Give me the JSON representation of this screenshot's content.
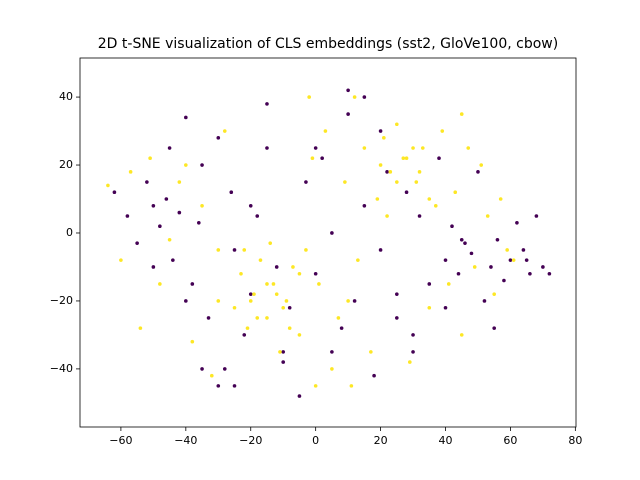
{
  "chart_data": {
    "type": "scatter",
    "title": "2D t-SNE visualization of CLS embeddings (sst2, GloVe100, cbow)",
    "xlim": [
      -72.6,
      80.2
    ],
    "ylim": [
      -57.1,
      51.5
    ],
    "xticks": [
      {
        "value": -60,
        "label": "−60"
      },
      {
        "value": -40,
        "label": "−40"
      },
      {
        "value": -20,
        "label": "−20"
      },
      0,
      20,
      40,
      60,
      80
    ],
    "yticks": [
      {
        "value": -40,
        "label": "−40"
      },
      {
        "value": -20,
        "label": "−20"
      },
      0,
      20,
      40
    ],
    "series": [
      {
        "color": "#440154",
        "x": [
          -62,
          -58,
          -55,
          -52,
          -50,
          -48,
          -46,
          -44,
          -42,
          -40,
          -38,
          -36,
          -35,
          -33,
          -30,
          -28,
          -26,
          -25,
          -22,
          -20,
          -18,
          -15,
          -12,
          -10,
          -8,
          -5,
          -3,
          0,
          2,
          5,
          8,
          10,
          12,
          15,
          18,
          20,
          22,
          25,
          28,
          30,
          32,
          35,
          38,
          40,
          42,
          44,
          46,
          48,
          50,
          52,
          54,
          56,
          58,
          60,
          62,
          64,
          66,
          68,
          70,
          72,
          -45,
          -40,
          -30,
          -20,
          -10,
          0,
          10,
          20,
          30,
          45,
          55,
          65,
          -50,
          -35,
          -15,
          5,
          25,
          40,
          -25,
          15
        ],
        "values": [
          12,
          5,
          -3,
          15,
          8,
          2,
          10,
          -8,
          6,
          34,
          -15,
          3,
          20,
          -25,
          28,
          -40,
          12,
          -5,
          -30,
          -18,
          5,
          38,
          -10,
          -38,
          -22,
          -48,
          15,
          -12,
          22,
          0,
          -28,
          35,
          -20,
          8,
          -42,
          -5,
          18,
          -25,
          12,
          -30,
          5,
          -15,
          22,
          -8,
          2,
          -12,
          -3,
          -6,
          18,
          -20,
          -10,
          -2,
          -14,
          -8,
          3,
          -5,
          -12,
          5,
          -10,
          -12,
          25,
          -20,
          -45,
          8,
          -35,
          25,
          42,
          30,
          -35,
          -2,
          -28,
          -8,
          -10,
          -40,
          25,
          -35,
          -18,
          -22,
          -45,
          40
        ]
      },
      {
        "color": "#fde725",
        "x": [
          -64,
          -60,
          -57,
          -54,
          -51,
          -48,
          -45,
          -42,
          -38,
          -35,
          -32,
          -30,
          -28,
          -25,
          -23,
          -21,
          -19,
          -17,
          -15,
          -13,
          -11,
          -9,
          -7,
          -5,
          -3,
          -1,
          1,
          3,
          5,
          7,
          9,
          11,
          13,
          15,
          17,
          19,
          21,
          23,
          25,
          27,
          29,
          31,
          33,
          35,
          37,
          39,
          41,
          43,
          45,
          47,
          49,
          51,
          53,
          55,
          57,
          59,
          61,
          -20,
          -15,
          -10,
          -5,
          -22,
          -18,
          -12,
          -8,
          20,
          25,
          30,
          35,
          22,
          28,
          32,
          -30,
          -2,
          10,
          -40,
          12,
          45,
          0,
          -14
        ],
        "values": [
          14,
          -8,
          18,
          -28,
          22,
          -15,
          -2,
          15,
          -32,
          8,
          -42,
          -20,
          30,
          -22,
          -12,
          -28,
          -18,
          -8,
          -25,
          -15,
          -35,
          -20,
          -10,
          -30,
          -5,
          22,
          -15,
          30,
          -40,
          -25,
          15,
          -45,
          -8,
          25,
          -35,
          10,
          28,
          18,
          32,
          22,
          -38,
          15,
          25,
          -22,
          8,
          30,
          -15,
          12,
          -30,
          25,
          -10,
          20,
          5,
          -18,
          10,
          -5,
          -8,
          -20,
          -15,
          -22,
          -12,
          -5,
          -25,
          -18,
          -28,
          20,
          15,
          25,
          10,
          5,
          22,
          18,
          -5,
          40,
          -20,
          20,
          40,
          35,
          -45,
          -3
        ]
      }
    ]
  }
}
